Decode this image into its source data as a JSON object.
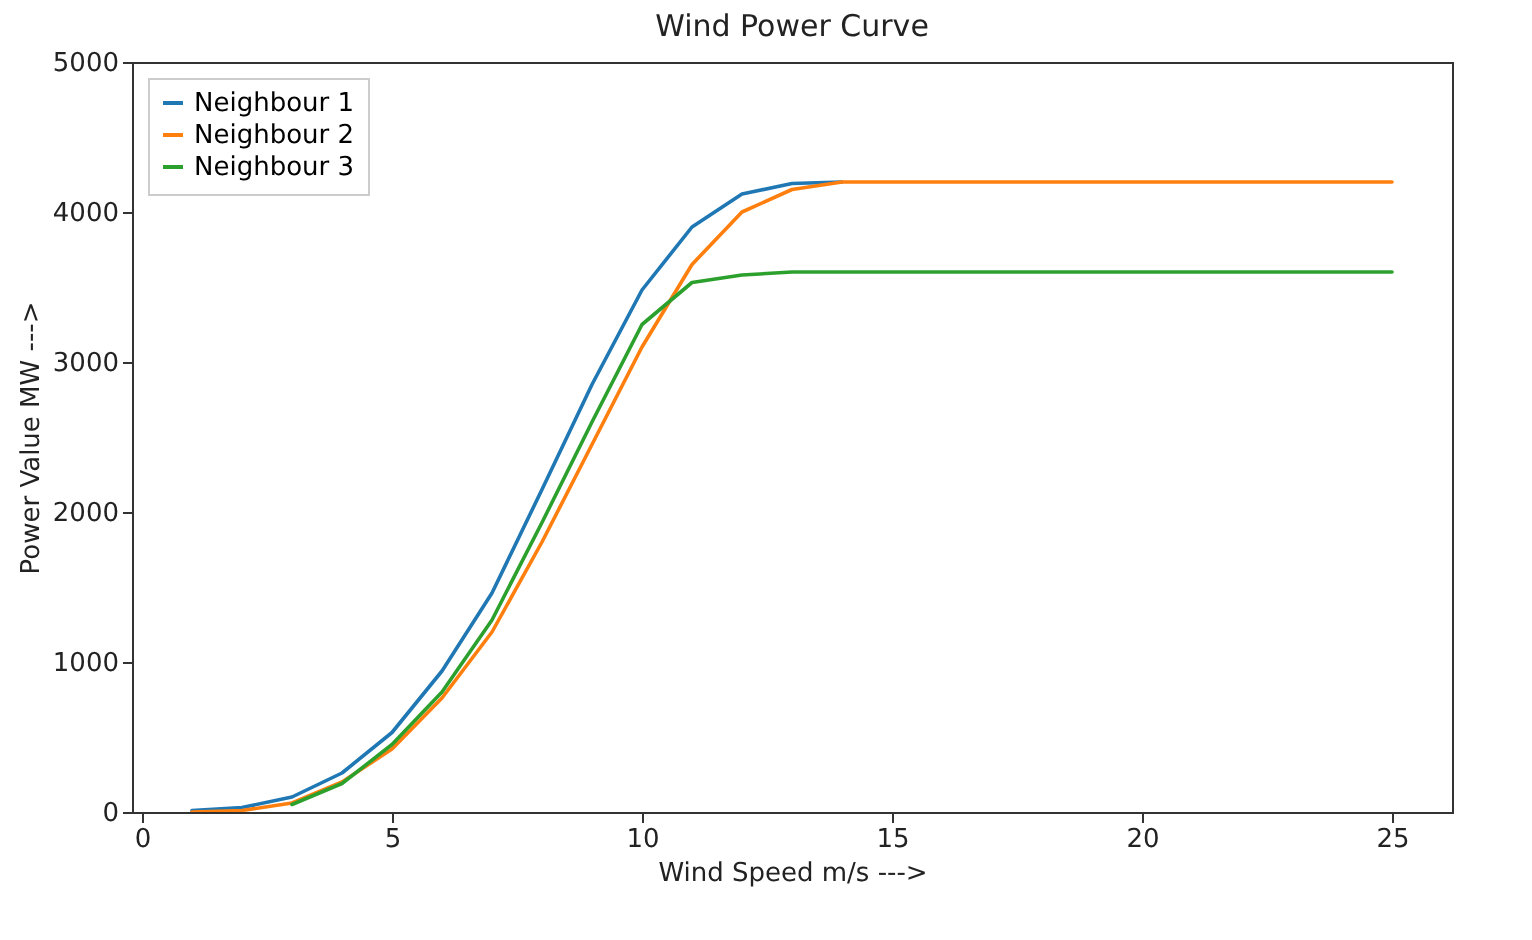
{
  "chart_data": {
    "type": "line",
    "title": "Wind Power Curve",
    "xlabel": "Wind Speed m/s --->",
    "ylabel": "Power Value MW --->",
    "x": [
      1,
      2,
      3,
      4,
      5,
      6,
      7,
      8,
      9,
      10,
      11,
      12,
      13,
      14,
      15,
      16,
      17,
      18,
      19,
      20,
      21,
      22,
      23,
      24,
      25
    ],
    "series": [
      {
        "name": "Neighbour 1",
        "color": "#1f77b4",
        "values": [
          10,
          30,
          100,
          260,
          530,
          940,
          1460,
          2150,
          2850,
          3480,
          3900,
          4120,
          4190,
          4200,
          null,
          null,
          null,
          null,
          null,
          null,
          null,
          null,
          null,
          null,
          null
        ]
      },
      {
        "name": "Neighbour 2",
        "color": "#ff7f0e",
        "values": [
          0,
          10,
          60,
          200,
          420,
          760,
          1200,
          1800,
          2450,
          3100,
          3650,
          4000,
          4150,
          4200,
          4200,
          4200,
          4200,
          4200,
          4200,
          4200,
          4200,
          4200,
          4200,
          4200,
          4200
        ]
      },
      {
        "name": "Neighbour 3",
        "color": "#2ca02c",
        "values": [
          null,
          null,
          50,
          190,
          450,
          800,
          1280,
          1930,
          2600,
          3250,
          3530,
          3580,
          3600,
          3600,
          3600,
          3600,
          3600,
          3600,
          3600,
          3600,
          3600,
          3600,
          3600,
          3600,
          3600
        ]
      }
    ],
    "xlim": [
      -0.2,
      26.2
    ],
    "xticks": [
      0,
      5,
      10,
      15,
      20,
      25
    ],
    "ylim": [
      0,
      5000
    ],
    "yticks": [
      0,
      1000,
      2000,
      3000,
      4000,
      5000
    ],
    "legend": "top left",
    "marker": "none",
    "line_style": "solid"
  }
}
